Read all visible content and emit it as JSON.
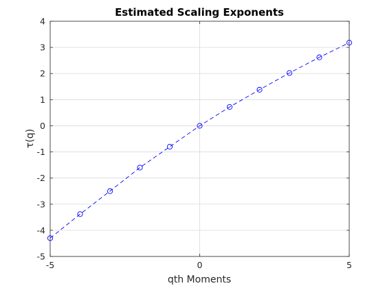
{
  "chart_data": {
    "type": "line",
    "title": "Estimated Scaling Exponents",
    "xlabel": "qth Moments",
    "ylabel": "τ(q)",
    "xlim": [
      -5,
      5
    ],
    "ylim": [
      -5,
      4
    ],
    "xticks": [
      -5,
      0,
      5
    ],
    "yticks": [
      -5,
      -4,
      -3,
      -2,
      -1,
      0,
      1,
      2,
      3,
      4
    ],
    "grid": true,
    "series": [
      {
        "color": "#0000ff",
        "line_style": "dashed",
        "marker": "circle",
        "x": [
          -5,
          -4,
          -3,
          -2,
          -1,
          0,
          1,
          2,
          3,
          4,
          5
        ],
        "y": [
          -4.3,
          -3.38,
          -2.5,
          -1.6,
          -0.8,
          0.0,
          0.72,
          1.38,
          2.02,
          2.62,
          3.18
        ]
      }
    ]
  }
}
